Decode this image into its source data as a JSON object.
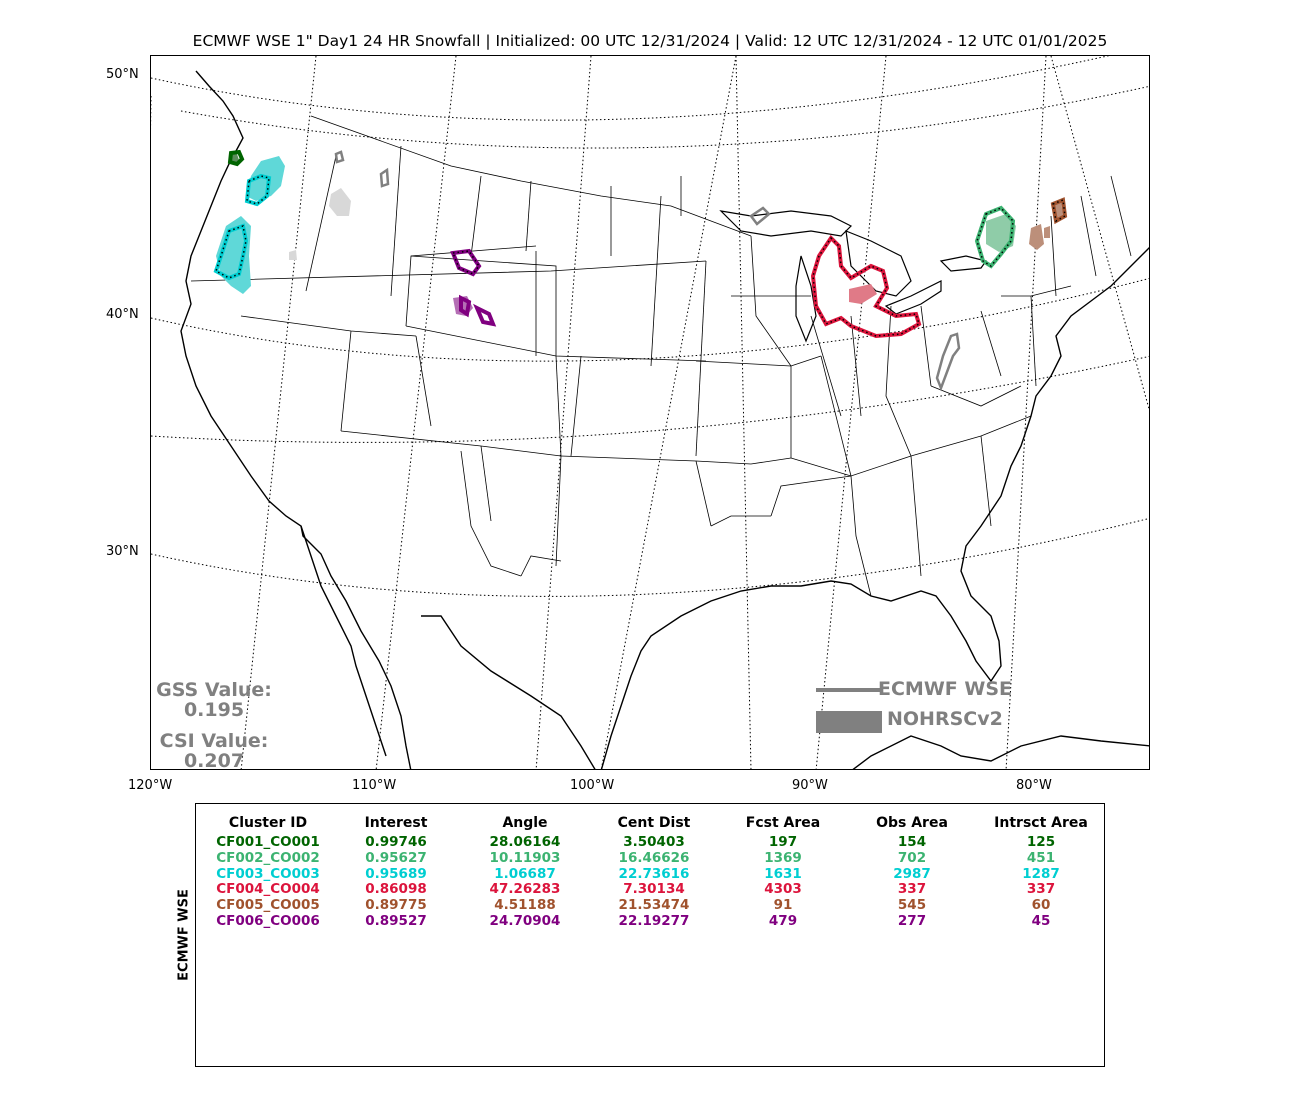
{
  "title": "ECMWF WSE 1\" Day1 24 HR Snowfall | Initialized: 00 UTC 12/31/2024 | Valid: 12 UTC 12/31/2024 - 12 UTC 01/01/2025",
  "lat_labels": [
    "50°N",
    "40°N",
    "30°N"
  ],
  "lon_labels": [
    "120°W",
    "110°W",
    "100°W",
    "90°W",
    "80°W"
  ],
  "scores": {
    "gss_label": "GSS Value:",
    "gss_value": "0.195",
    "csi_label": "CSI Value:",
    "csi_value": "0.207"
  },
  "legend": {
    "forecast_label": "ECMWF WSE",
    "observed_label": "NOHRSCv2",
    "forecast_color": "#808080",
    "observed_color": "#808080"
  },
  "table": {
    "row_axis_label": "ECMWF WSE",
    "headers": [
      "Cluster ID",
      "Interest",
      "Angle",
      "Cent Dist",
      "Fcst Area",
      "Obs Area",
      "Intrsct Area"
    ],
    "rows": [
      {
        "color": "#006400",
        "cells": [
          "CF001_CO001",
          "0.99746",
          "28.06164",
          "3.50403",
          "197",
          "154",
          "125"
        ]
      },
      {
        "color": "#3cb371",
        "cells": [
          "CF002_CO002",
          "0.95627",
          "10.11903",
          "16.46626",
          "1369",
          "702",
          "451"
        ]
      },
      {
        "color": "#00ced1",
        "cells": [
          "CF003_CO003",
          "0.95689",
          "1.06687",
          "22.73616",
          "1631",
          "2987",
          "1287"
        ]
      },
      {
        "color": "#dc143c",
        "cells": [
          "CF004_CO004",
          "0.86098",
          "47.26283",
          "7.30134",
          "4303",
          "337",
          "337"
        ]
      },
      {
        "color": "#a0522d",
        "cells": [
          "CF005_CO005",
          "0.89775",
          "4.51188",
          "21.53474",
          "91",
          "545",
          "60"
        ]
      },
      {
        "color": "#800080",
        "cells": [
          "CF006_CO006",
          "0.89527",
          "24.70904",
          "22.19277",
          "479",
          "277",
          "45"
        ]
      }
    ]
  },
  "clusters": {
    "cf001_color": "#006400",
    "cf002_color": "#3cb371",
    "cf003_color": "#00ced1",
    "cf004_color": "#dc143c",
    "cf005_color": "#a0522d",
    "cf006_color": "#800080",
    "unmatched_color": "#808080"
  }
}
